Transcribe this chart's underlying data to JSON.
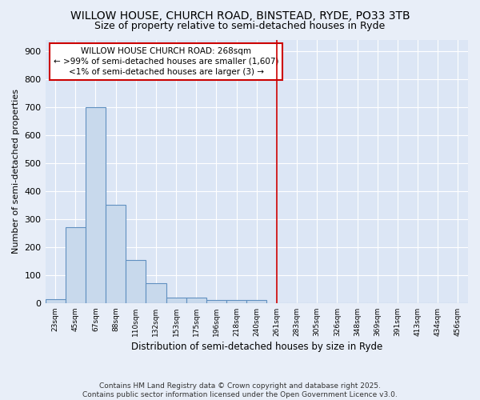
{
  "title": "WILLOW HOUSE, CHURCH ROAD, BINSTEAD, RYDE, PO33 3TB",
  "subtitle": "Size of property relative to semi-detached houses in Ryde",
  "xlabel": "Distribution of semi-detached houses by size in Ryde",
  "ylabel": "Number of semi-detached properties",
  "categories": [
    "23sqm",
    "45sqm",
    "67sqm",
    "88sqm",
    "110sqm",
    "132sqm",
    "153sqm",
    "175sqm",
    "196sqm",
    "218sqm",
    "240sqm",
    "261sqm",
    "283sqm",
    "305sqm",
    "326sqm",
    "348sqm",
    "369sqm",
    "391sqm",
    "413sqm",
    "434sqm",
    "456sqm"
  ],
  "values": [
    15,
    270,
    700,
    350,
    155,
    70,
    20,
    20,
    10,
    10,
    10,
    0,
    0,
    0,
    0,
    0,
    0,
    0,
    0,
    0,
    0
  ],
  "bar_color": "#c8d9ec",
  "bar_edge_color": "#6090c0",
  "ylim": [
    0,
    940
  ],
  "yticks": [
    0,
    100,
    200,
    300,
    400,
    500,
    600,
    700,
    800,
    900
  ],
  "vline_x_index": 11,
  "vline_color": "#cc0000",
  "annotation_title": "WILLOW HOUSE CHURCH ROAD: 268sqm",
  "annotation_line1": "← >99% of semi-detached houses are smaller (1,607)",
  "annotation_line2": "<1% of semi-detached houses are larger (3) →",
  "annotation_box_color": "#cc0000",
  "footer_line1": "Contains HM Land Registry data © Crown copyright and database right 2025.",
  "footer_line2": "Contains public sector information licensed under the Open Government Licence v3.0.",
  "background_color": "#e8eef8",
  "plot_background_color": "#dce6f5",
  "title_fontsize": 10,
  "subtitle_fontsize": 9,
  "annotation_fontsize": 7.5,
  "footer_fontsize": 6.5
}
